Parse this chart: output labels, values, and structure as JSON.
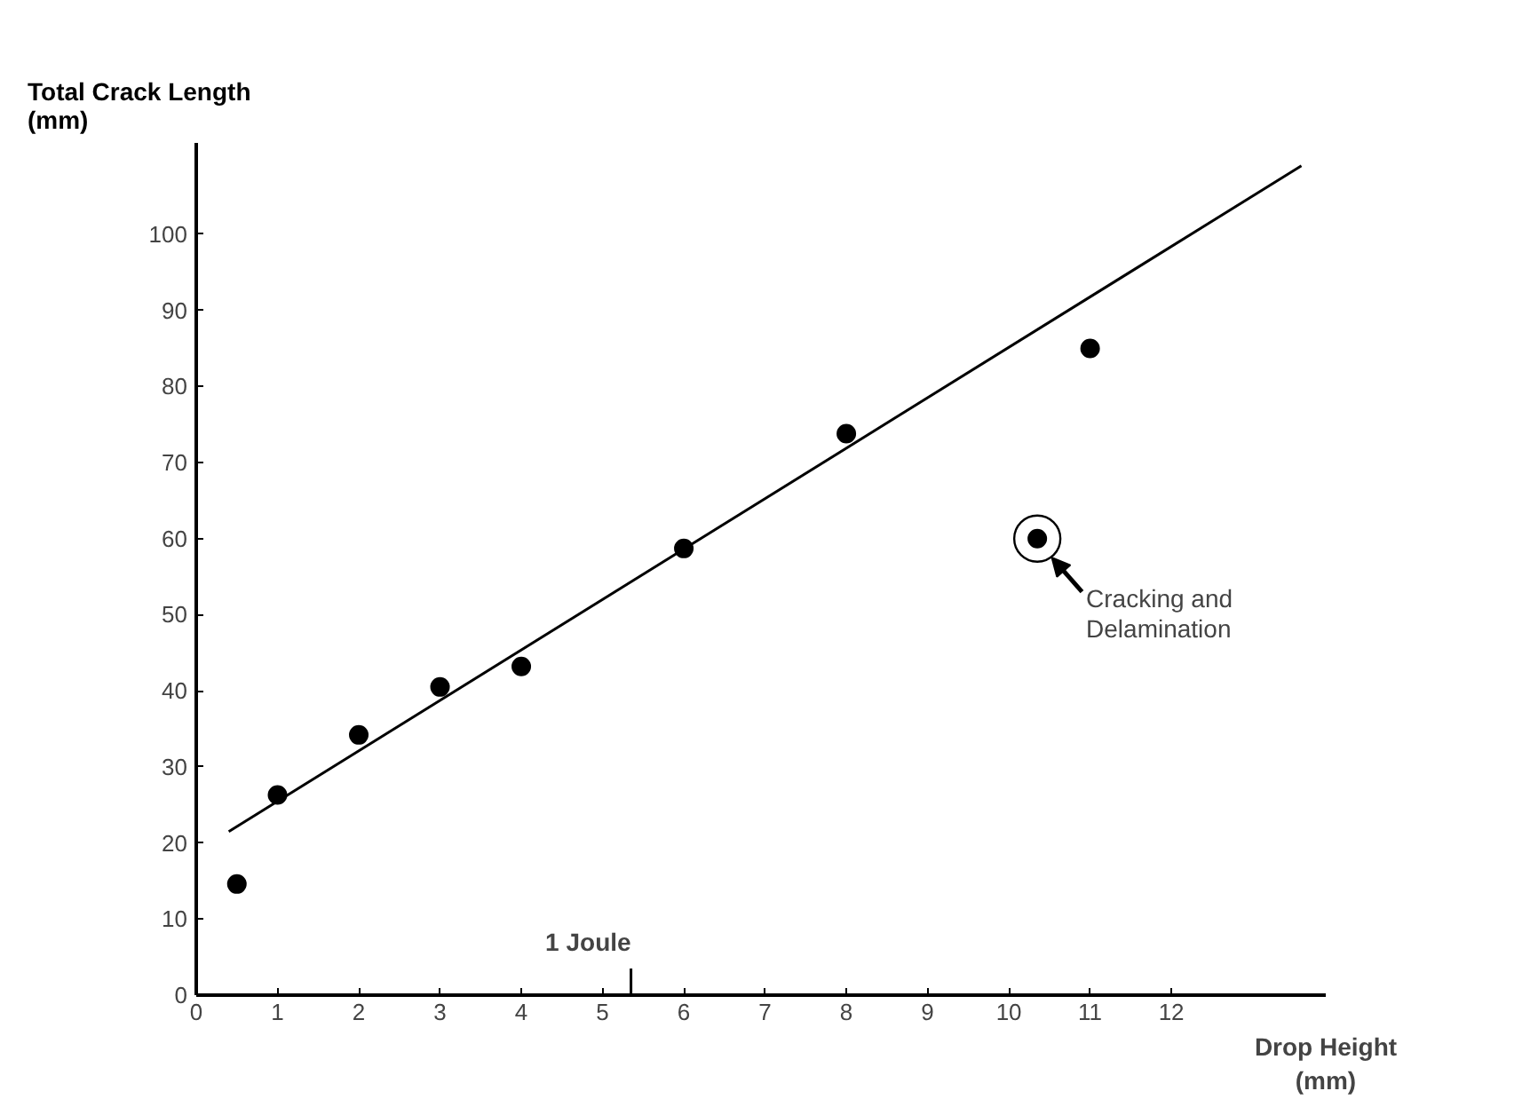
{
  "chart_data": {
    "type": "scatter",
    "xlabel": "Drop Height\n(mm)",
    "ylabel": "Total Crack Length\n(mm)",
    "series": [
      {
        "color": "#000000",
        "marker": "circle",
        "x": [
          0.5,
          1,
          2,
          3,
          4,
          6,
          8,
          10.35,
          11
        ],
        "values": [
          14.6,
          26.3,
          34.2,
          40.5,
          43.2,
          58.7,
          73.8,
          60,
          85
        ]
      },
      {
        "type": "line",
        "color": "#000000",
        "x": [
          0.4,
          13.6
        ],
        "values": [
          21.5,
          109
        ]
      }
    ],
    "xlim": [
      0,
      13.9
    ],
    "ylim": [
      0,
      112
    ],
    "xticks": [
      0,
      1,
      2,
      3,
      4,
      5,
      6,
      7,
      8,
      9,
      10,
      11,
      12
    ],
    "yticks": [
      0,
      10,
      20,
      30,
      40,
      50,
      60,
      70,
      80,
      90,
      100
    ],
    "ref_lines": [
      {
        "axis": "x",
        "value": 5.35,
        "label": "1 Joule"
      }
    ],
    "annotations": [
      {
        "text": "Cracking and\nDelamination",
        "x": 10.35,
        "y": 60
      }
    ],
    "grid": false
  }
}
